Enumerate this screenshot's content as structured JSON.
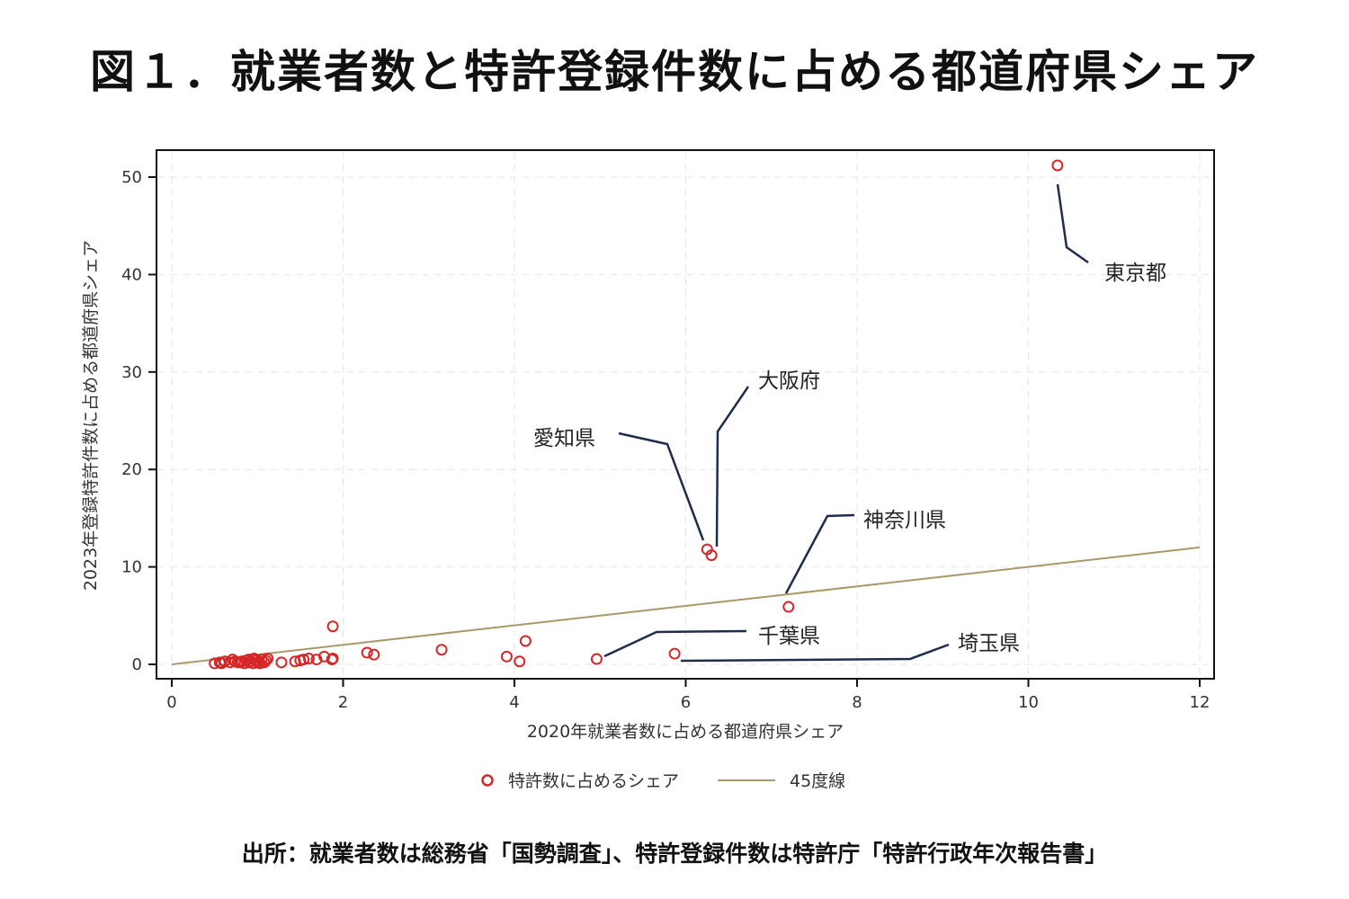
{
  "title": "図１．就業者数と特許登録件数に占める都道府県シェア",
  "source": "出所：就業者数は総務省「国勢調査」、特許登録件数は特許庁「特許行政年次報告書」",
  "chart_data": {
    "type": "scatter",
    "title": "図１．就業者数と特許登録件数に占める都道府県シェア",
    "xlabel": "2020年就業者数に占める都道府県シェア",
    "ylabel": "2023年登録特許件数に占める都道府県シェア",
    "xlim": [
      0,
      12
    ],
    "ylim": [
      0,
      50
    ],
    "xticks": [
      "0",
      "2",
      "4",
      "6",
      "8",
      "10",
      "12"
    ],
    "yticks": [
      "0",
      "10",
      "20",
      "30",
      "40",
      "50"
    ],
    "grid": true,
    "legend": {
      "placement": "bottom",
      "entries": [
        "特許数に占めるシェア",
        "45度線"
      ]
    },
    "colors": {
      "points": "#d62728",
      "line": "#a89968",
      "leader": "#1f2d4d"
    },
    "reference_line": {
      "name": "45度線",
      "x": [
        0,
        12
      ],
      "y": [
        0,
        12
      ]
    },
    "labeled_points": [
      {
        "name": "東京都",
        "x": 10.34,
        "y": 51.2
      },
      {
        "name": "大阪府",
        "x": 6.3,
        "y": 11.2
      },
      {
        "name": "愛知県",
        "x": 6.25,
        "y": 11.8
      },
      {
        "name": "神奈川県",
        "x": 7.2,
        "y": 5.9
      },
      {
        "name": "千葉県",
        "x": 4.96,
        "y": 0.55
      },
      {
        "name": "埼玉県",
        "x": 5.87,
        "y": 1.1
      }
    ],
    "points": [
      [
        1.88,
        3.9
      ],
      [
        2.28,
        1.2
      ],
      [
        2.36,
        1.0
      ],
      [
        3.15,
        1.5
      ],
      [
        3.91,
        0.8
      ],
      [
        4.06,
        0.3
      ],
      [
        4.13,
        2.4
      ],
      [
        1.87,
        0.5
      ],
      [
        1.88,
        0.6
      ],
      [
        1.78,
        0.8
      ],
      [
        1.69,
        0.5
      ],
      [
        1.6,
        0.6
      ],
      [
        1.5,
        0.4
      ],
      [
        1.44,
        0.3
      ],
      [
        1.54,
        0.5
      ],
      [
        1.28,
        0.2
      ],
      [
        1.12,
        0.6
      ],
      [
        1.05,
        0.5
      ],
      [
        1.02,
        0.3
      ],
      [
        1.0,
        0.2
      ],
      [
        0.98,
        0.4
      ],
      [
        0.95,
        0.1
      ],
      [
        0.92,
        0.3
      ],
      [
        0.9,
        0.2
      ],
      [
        0.87,
        0.4
      ],
      [
        0.85,
        0.1
      ],
      [
        0.82,
        0.3
      ],
      [
        0.8,
        0.2
      ],
      [
        0.77,
        0.2
      ],
      [
        0.74,
        0.3
      ],
      [
        0.71,
        0.5
      ],
      [
        0.68,
        0.2
      ],
      [
        0.62,
        0.3
      ],
      [
        0.58,
        0.1
      ],
      [
        0.56,
        0.2
      ],
      [
        0.5,
        0.1
      ],
      [
        1.08,
        0.2
      ],
      [
        1.1,
        0.4
      ],
      [
        0.96,
        0.6
      ],
      [
        1.03,
        0.1
      ],
      [
        0.9,
        0.5
      ]
    ]
  }
}
